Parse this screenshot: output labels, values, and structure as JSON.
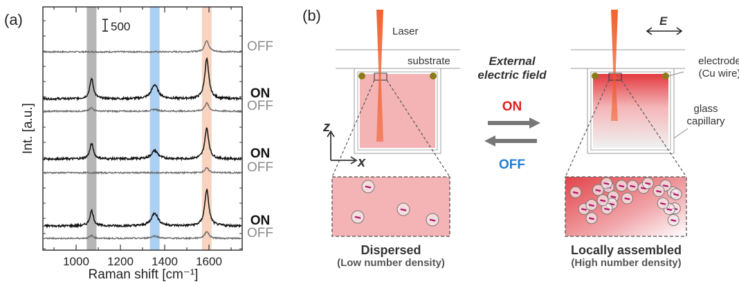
{
  "panel_a": {
    "label": "(a)",
    "scale_bar_label": "500",
    "states": [
      "OFF",
      "ON",
      "OFF",
      "ON",
      "OFF",
      "ON",
      "OFF"
    ]
  },
  "panel_b": {
    "label": "(b)",
    "laser_label": "Laser",
    "substrate_label": "substrate",
    "field_line1": "External",
    "field_line2": "electric field",
    "on_label": "ON",
    "off_label": "OFF",
    "e_label": "E",
    "electrode_line1": "electrode",
    "electrode_line2": "(Cu wire)",
    "capillary_line1": "glass",
    "capillary_line2": "capillary",
    "axis_z": "z",
    "axis_x": "x",
    "left_caption": "Dispersed",
    "left_subcaption": "(Low number density)",
    "right_caption": "Locally assembled",
    "right_subcaption": "(High number density)"
  },
  "colors": {
    "on_red": "#e0201b",
    "off_blue": "#1f7fd6",
    "band_gray": "#a9a9a9",
    "band_blue": "#9cc8f0",
    "band_peach": "#f7cbb4",
    "sample_pink": "#f4b3b5",
    "laser": "#f15a24"
  },
  "chart_data": {
    "type": "line",
    "title": "",
    "xlabel": "Raman shift [cm⁻¹]",
    "ylabel": "Int. [a.u.]",
    "xlim": [
      850,
      1750
    ],
    "xticks": [
      1000,
      1200,
      1400,
      1600
    ],
    "scale_bar": 500,
    "highlight_bands": [
      1070,
      1355,
      1590
    ],
    "series": [
      {
        "name": "OFF",
        "peaks": [
          [
            1590,
            500
          ]
        ]
      },
      {
        "name": "ON",
        "peaks": [
          [
            1070,
            850
          ],
          [
            1355,
            600
          ],
          [
            1590,
            1700
          ]
        ]
      },
      {
        "name": "OFF",
        "peaks": [
          [
            1070,
            150
          ],
          [
            1355,
            80
          ],
          [
            1590,
            350
          ]
        ]
      },
      {
        "name": "ON",
        "peaks": [
          [
            1070,
            650
          ],
          [
            1355,
            350
          ],
          [
            1590,
            1300
          ]
        ]
      },
      {
        "name": "OFF",
        "peaks": [
          [
            1590,
            200
          ]
        ]
      },
      {
        "name": "ON",
        "peaks": [
          [
            1070,
            650
          ],
          [
            1355,
            550
          ],
          [
            1590,
            1550
          ]
        ]
      },
      {
        "name": "OFF",
        "peaks": [
          [
            1070,
            120
          ],
          [
            1355,
            100
          ],
          [
            1590,
            300
          ]
        ]
      }
    ]
  }
}
